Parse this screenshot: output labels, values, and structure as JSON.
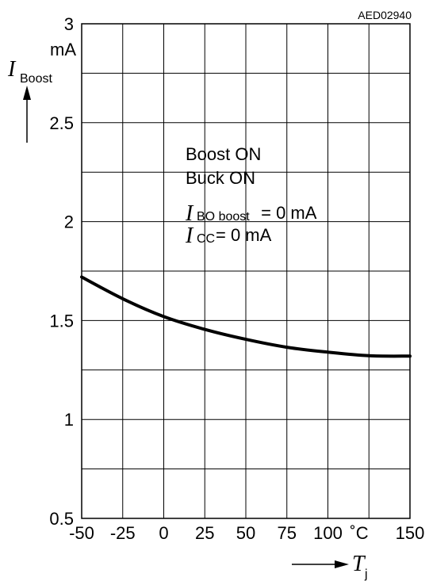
{
  "chart_data": {
    "type": "line",
    "code": "AED02940",
    "ylabel": {
      "symbol": "I",
      "subscript": "Boost",
      "unit": "mA"
    },
    "xlabel": {
      "symbol": "T",
      "subscript": "j",
      "unit": "˚C"
    },
    "xlim": [
      -50,
      150
    ],
    "ylim": [
      0.5,
      3
    ],
    "x_ticks": [
      "-50",
      "-25",
      "0",
      "25",
      "50",
      "75",
      "100",
      "150"
    ],
    "y_ticks": [
      "0.5",
      "1",
      "1.5",
      "2",
      "2.5",
      "3"
    ],
    "grid": true,
    "annotations": {
      "line1": "Boost ON",
      "line2": "Buck ON",
      "cond1_symbol": "I",
      "cond1_sub": "BO boost",
      "cond1_value": " = 0 mA",
      "cond2_symbol": "I",
      "cond2_sub": "CC",
      "cond2_value": "= 0 mA"
    },
    "series": [
      {
        "x": [
          -50,
          -25,
          0,
          25,
          50,
          75,
          100,
          125,
          150
        ],
        "values": [
          1.72,
          1.61,
          1.52,
          1.455,
          1.405,
          1.365,
          1.34,
          1.322,
          1.32
        ]
      }
    ]
  }
}
